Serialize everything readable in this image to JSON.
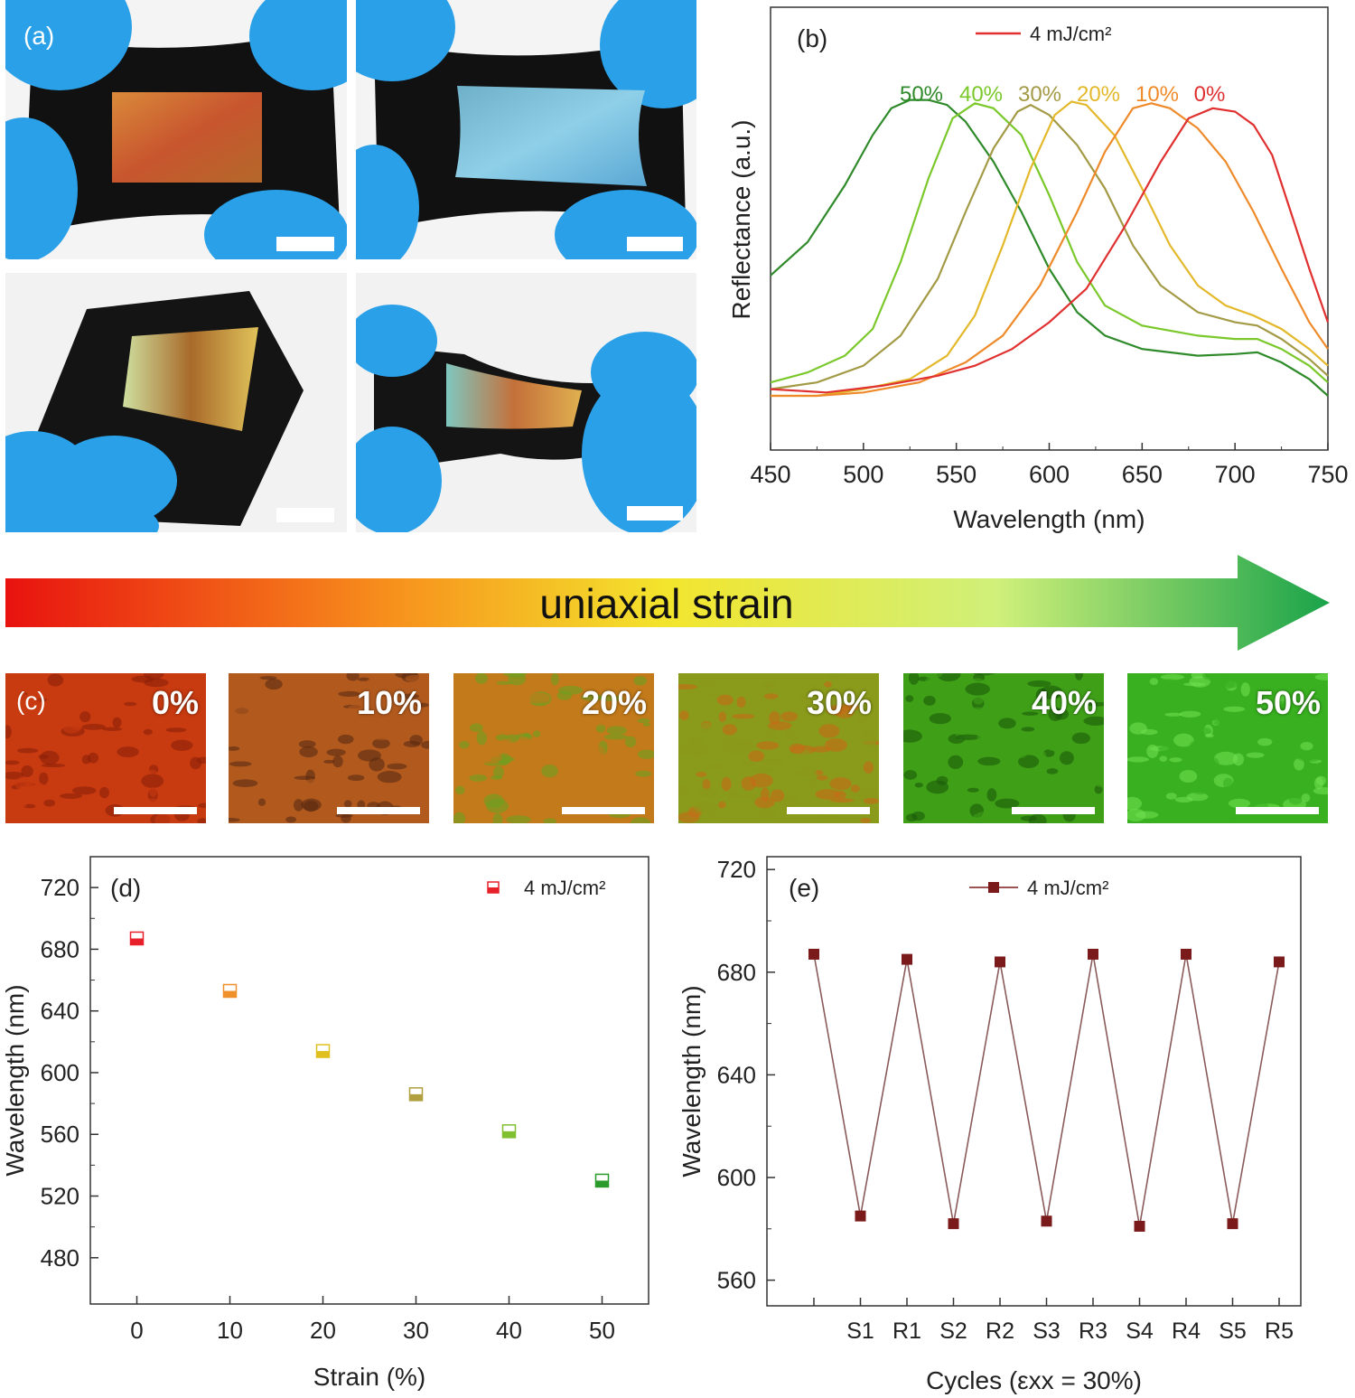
{
  "panel_a": {
    "label": "(a)",
    "photos": [
      {
        "name": "flat-stretched-red",
        "film_colors": [
          "#c8552e",
          "#d98a3a",
          "#b4682a"
        ]
      },
      {
        "name": "flat-stretched-blue",
        "film_colors": [
          "#5aa7d4",
          "#8fd0e8",
          "#6fb0c9"
        ]
      },
      {
        "name": "bent",
        "film_colors": [
          "#e0c25a",
          "#a86a2a",
          "#cfe0a0"
        ]
      },
      {
        "name": "twisted",
        "film_colors": [
          "#7fc7c0",
          "#c4703a",
          "#e0b050"
        ]
      }
    ]
  },
  "strain_arrow": {
    "label": "uniaxial strain",
    "colors": [
      "#e8120f",
      "#f7941d",
      "#f3e52d",
      "#cff07a",
      "#1aa34a"
    ]
  },
  "panel_c": {
    "label": "(c)",
    "tiles": [
      {
        "pct": "0%",
        "base": "#c83a10",
        "accent": "#8a2008"
      },
      {
        "pct": "10%",
        "base": "#b25a1e",
        "accent": "#5a2a10"
      },
      {
        "pct": "20%",
        "base": "#c27a1a",
        "accent": "#6aa020"
      },
      {
        "pct": "30%",
        "base": "#8a9a1a",
        "accent": "#c86a18"
      },
      {
        "pct": "40%",
        "base": "#3fa018",
        "accent": "#1a5a0a"
      },
      {
        "pct": "50%",
        "base": "#38b020",
        "accent": "#70e050"
      }
    ]
  },
  "chart_data": [
    {
      "id": "b",
      "type": "line",
      "label": "(b)",
      "legend": "4 mJ/cm²",
      "xlabel": "Wavelength (nm)",
      "ylabel": "Reflectance (a.u.)",
      "xlim": [
        450,
        750
      ],
      "xticks": [
        450,
        500,
        550,
        600,
        650,
        700,
        750
      ],
      "series": [
        {
          "name": "50%",
          "color": "#2f8a2a",
          "peak": 528,
          "points": [
            [
              450,
              0.36
            ],
            [
              470,
              0.46
            ],
            [
              490,
              0.63
            ],
            [
              505,
              0.78
            ],
            [
              515,
              0.86
            ],
            [
              525,
              0.885
            ],
            [
              535,
              0.885
            ],
            [
              545,
              0.87
            ],
            [
              555,
              0.82
            ],
            [
              570,
              0.7
            ],
            [
              585,
              0.55
            ],
            [
              600,
              0.38
            ],
            [
              615,
              0.25
            ],
            [
              630,
              0.18
            ],
            [
              650,
              0.14
            ],
            [
              680,
              0.12
            ],
            [
              700,
              0.125
            ],
            [
              712,
              0.13
            ],
            [
              725,
              0.1
            ],
            [
              740,
              0.05
            ],
            [
              750,
              0.0
            ]
          ]
        },
        {
          "name": "40%",
          "color": "#7ac82a",
          "peak": 562,
          "points": [
            [
              450,
              0.04
            ],
            [
              470,
              0.07
            ],
            [
              490,
              0.12
            ],
            [
              505,
              0.2
            ],
            [
              520,
              0.4
            ],
            [
              535,
              0.65
            ],
            [
              548,
              0.83
            ],
            [
              560,
              0.875
            ],
            [
              570,
              0.86
            ],
            [
              585,
              0.78
            ],
            [
              600,
              0.6
            ],
            [
              615,
              0.4
            ],
            [
              630,
              0.27
            ],
            [
              650,
              0.21
            ],
            [
              680,
              0.18
            ],
            [
              700,
              0.17
            ],
            [
              712,
              0.17
            ],
            [
              725,
              0.14
            ],
            [
              740,
              0.09
            ],
            [
              750,
              0.04
            ]
          ]
        },
        {
          "name": "30%",
          "color": "#a39a45",
          "peak": 587,
          "points": [
            [
              450,
              0.02
            ],
            [
              475,
              0.04
            ],
            [
              500,
              0.09
            ],
            [
              520,
              0.18
            ],
            [
              540,
              0.35
            ],
            [
              555,
              0.55
            ],
            [
              570,
              0.74
            ],
            [
              583,
              0.85
            ],
            [
              590,
              0.87
            ],
            [
              600,
              0.84
            ],
            [
              615,
              0.75
            ],
            [
              630,
              0.62
            ],
            [
              645,
              0.45
            ],
            [
              660,
              0.33
            ],
            [
              680,
              0.25
            ],
            [
              700,
              0.22
            ],
            [
              712,
              0.21
            ],
            [
              725,
              0.17
            ],
            [
              740,
              0.11
            ],
            [
              750,
              0.06
            ]
          ]
        },
        {
          "name": "20%",
          "color": "#e3b82a",
          "peak": 612,
          "points": [
            [
              450,
              0.0
            ],
            [
              475,
              0.0
            ],
            [
              500,
              0.02
            ],
            [
              525,
              0.05
            ],
            [
              545,
              0.12
            ],
            [
              560,
              0.24
            ],
            [
              575,
              0.45
            ],
            [
              590,
              0.68
            ],
            [
              603,
              0.84
            ],
            [
              612,
              0.88
            ],
            [
              620,
              0.87
            ],
            [
              635,
              0.78
            ],
            [
              650,
              0.62
            ],
            [
              665,
              0.45
            ],
            [
              680,
              0.33
            ],
            [
              695,
              0.27
            ],
            [
              710,
              0.24
            ],
            [
              725,
              0.2
            ],
            [
              740,
              0.14
            ],
            [
              750,
              0.09
            ]
          ]
        },
        {
          "name": "10%",
          "color": "#ef8a2a",
          "peak": 650,
          "points": [
            [
              450,
              0.0
            ],
            [
              475,
              0.0
            ],
            [
              500,
              0.01
            ],
            [
              530,
              0.04
            ],
            [
              555,
              0.1
            ],
            [
              575,
              0.18
            ],
            [
              595,
              0.33
            ],
            [
              615,
              0.55
            ],
            [
              630,
              0.73
            ],
            [
              645,
              0.86
            ],
            [
              655,
              0.875
            ],
            [
              665,
              0.86
            ],
            [
              680,
              0.8
            ],
            [
              695,
              0.7
            ],
            [
              710,
              0.55
            ],
            [
              725,
              0.38
            ],
            [
              740,
              0.22
            ],
            [
              750,
              0.14
            ]
          ]
        },
        {
          "name": "0%",
          "color": "#e03030",
          "peak": 688,
          "points": [
            [
              450,
              0.02
            ],
            [
              480,
              0.01
            ],
            [
              510,
              0.03
            ],
            [
              540,
              0.06
            ],
            [
              560,
              0.09
            ],
            [
              580,
              0.14
            ],
            [
              600,
              0.22
            ],
            [
              620,
              0.32
            ],
            [
              640,
              0.5
            ],
            [
              660,
              0.7
            ],
            [
              675,
              0.83
            ],
            [
              688,
              0.86
            ],
            [
              700,
              0.85
            ],
            [
              710,
              0.81
            ],
            [
              720,
              0.72
            ],
            [
              730,
              0.55
            ],
            [
              740,
              0.38
            ],
            [
              750,
              0.22
            ]
          ]
        }
      ]
    },
    {
      "id": "d",
      "type": "scatter",
      "label": "(d)",
      "legend": "4 mJ/cm²",
      "xlabel": "Strain (%)",
      "ylabel": "Wavelength (nm)",
      "xlim": [
        -5,
        55
      ],
      "ylim": [
        450,
        740
      ],
      "xticks": [
        0,
        10,
        20,
        30,
        40,
        50
      ],
      "yticks": [
        480,
        520,
        560,
        600,
        640,
        680,
        720
      ],
      "x": [
        0,
        10,
        20,
        30,
        40,
        50
      ],
      "y": [
        687,
        653,
        614,
        586,
        562,
        530
      ],
      "colors": [
        "#e8202a",
        "#f0902a",
        "#e0c020",
        "#b0a040",
        "#80c030",
        "#2a9a2a"
      ]
    },
    {
      "id": "e",
      "type": "line",
      "label": "(e)",
      "legend": "4 mJ/cm²",
      "xlabel": "Cycles (εxx = 30%)",
      "ylabel": "Wavelength (nm)",
      "ylim": [
        550,
        725
      ],
      "yticks": [
        560,
        600,
        640,
        680,
        720
      ],
      "categories": [
        "",
        "S1",
        "R1",
        "S2",
        "R2",
        "S3",
        "R3",
        "S4",
        "R4",
        "S5",
        "R5"
      ],
      "values": [
        687,
        585,
        685,
        582,
        684,
        583,
        687,
        581,
        687,
        582,
        684
      ],
      "color": "#7a1a1a"
    }
  ]
}
